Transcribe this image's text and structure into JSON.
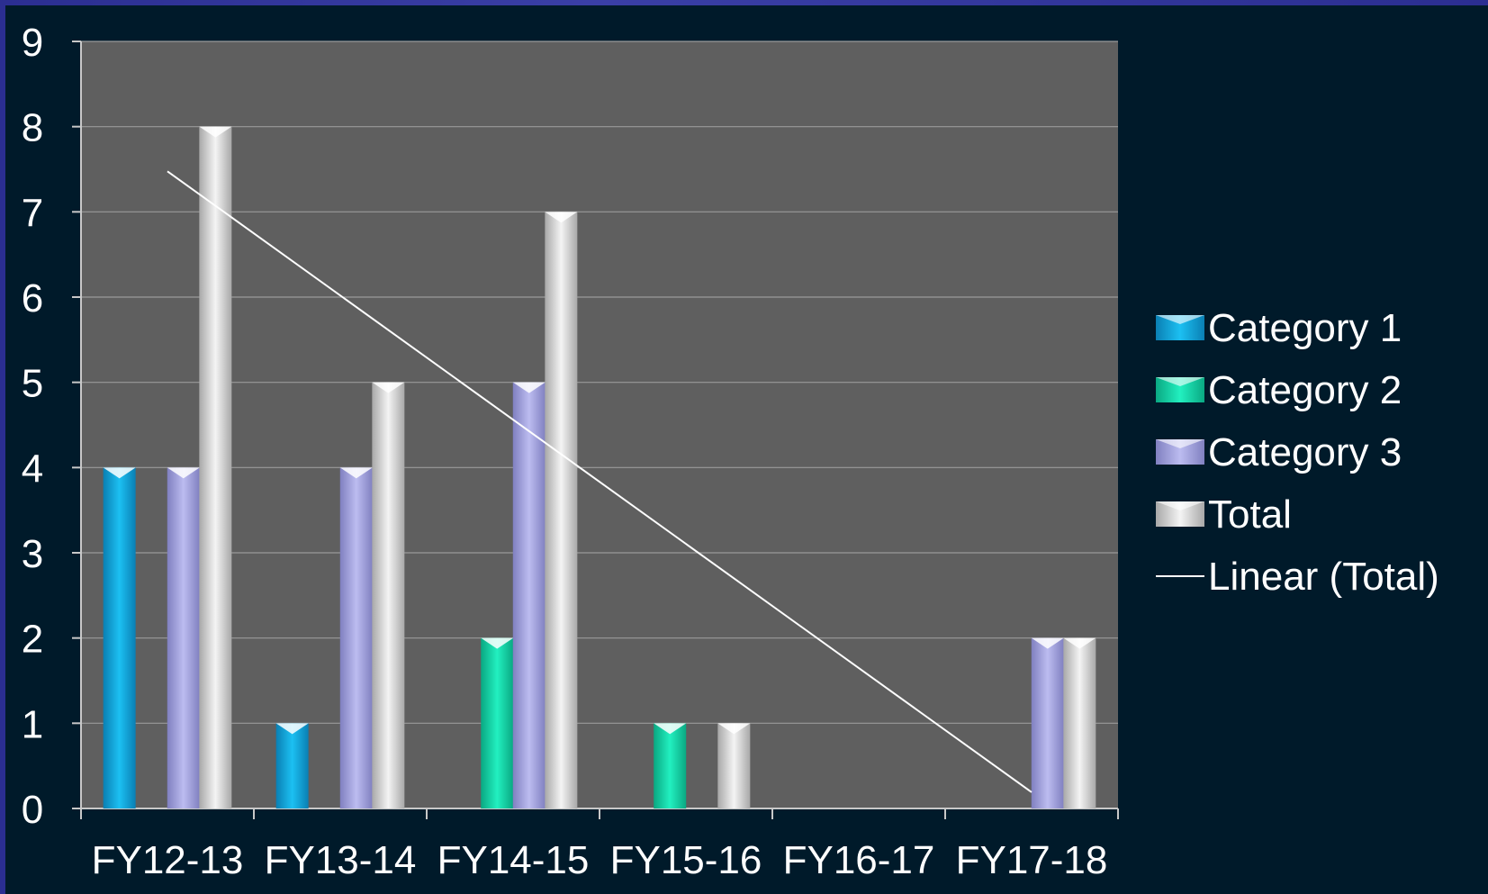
{
  "chart_data": {
    "type": "bar",
    "categories": [
      "FY12-13",
      "FY13-14",
      "FY14-15",
      "FY15-16",
      "FY16-17",
      "FY17-18"
    ],
    "series": [
      {
        "name": "Category 1",
        "values": [
          4,
          1,
          0,
          0,
          0,
          0
        ],
        "color": "#0fa8e0"
      },
      {
        "name": "Category 2",
        "values": [
          0,
          0,
          2,
          1,
          0,
          0
        ],
        "color": "#10d9a8"
      },
      {
        "name": "Category 3",
        "values": [
          4,
          4,
          5,
          0,
          0,
          2
        ],
        "color": "#a6a6e0"
      },
      {
        "name": "Total",
        "values": [
          8,
          5,
          7,
          1,
          0,
          2
        ],
        "color": "#dcdcdc"
      }
    ],
    "trendline": {
      "name": "Linear (Total)",
      "of_series": "Total",
      "type": "linear",
      "color": "#ffffff"
    },
    "title": "",
    "xlabel": "",
    "ylabel": "",
    "ylim": [
      0,
      9
    ],
    "yticks": [
      "0",
      "1",
      "2",
      "3",
      "4",
      "5",
      "6",
      "7",
      "8",
      "9"
    ],
    "grid": true,
    "legend_position": "right",
    "plot_background": "#5f5f5f",
    "background": "#001a2a"
  }
}
